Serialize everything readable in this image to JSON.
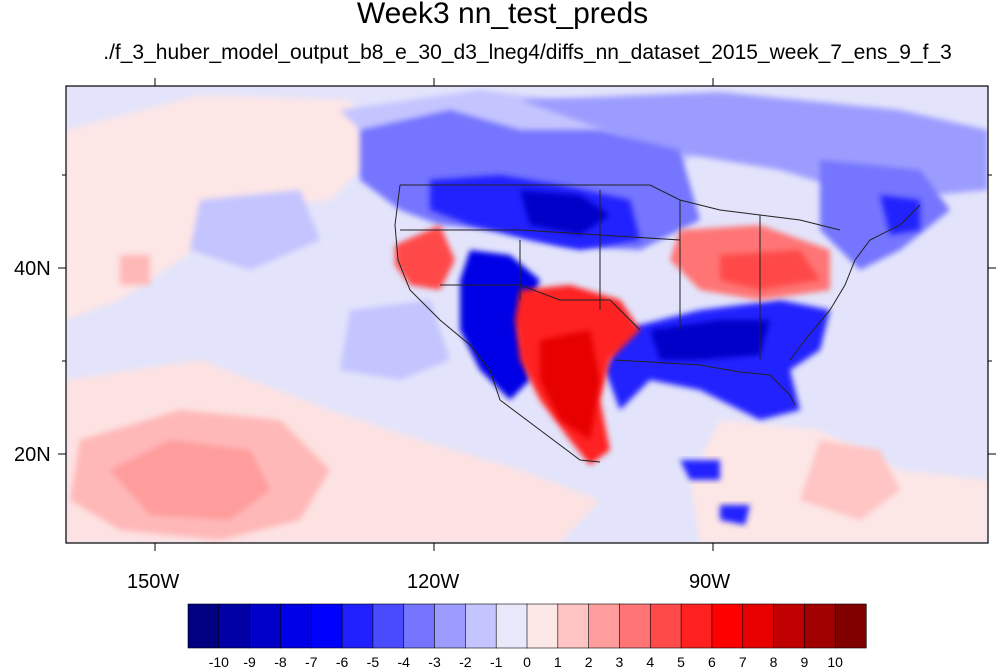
{
  "title": "Week3 nn_test_preds",
  "subtitle": "./f_3_huber_model_output_b8_e_30_d3_lneg4/diffs_nn_dataset_2015_week_7_ens_9_f_3",
  "axes": {
    "lat_labels": [
      "40N",
      "20N"
    ],
    "lon_labels": [
      "150W",
      "120W",
      "90W"
    ],
    "lon_range": [
      -160,
      -60
    ],
    "lat_range": [
      10,
      60
    ]
  },
  "colorbar": {
    "labels": [
      "-10",
      "-9",
      "-8",
      "-7",
      "-6",
      "-5",
      "-4",
      "-3",
      "-2",
      "-1",
      "0",
      "1",
      "2",
      "3",
      "4",
      "5",
      "6",
      "7",
      "8",
      "9",
      "10"
    ],
    "colors": [
      "#000080",
      "#0000a5",
      "#0000c8",
      "#0000e6",
      "#0000ff",
      "#2020ff",
      "#4a4aff",
      "#7474ff",
      "#9c9cff",
      "#c4c4ff",
      "#e8e8fa",
      "#fde8e8",
      "#ffc4c4",
      "#ff9c9c",
      "#ff7474",
      "#ff4a4a",
      "#ff2020",
      "#ff0000",
      "#e60000",
      "#c00000",
      "#a00000",
      "#800000"
    ]
  },
  "colors": {
    "background_weak_blue": "#e0e2fa",
    "weak_pink": "#fde6e6"
  }
}
